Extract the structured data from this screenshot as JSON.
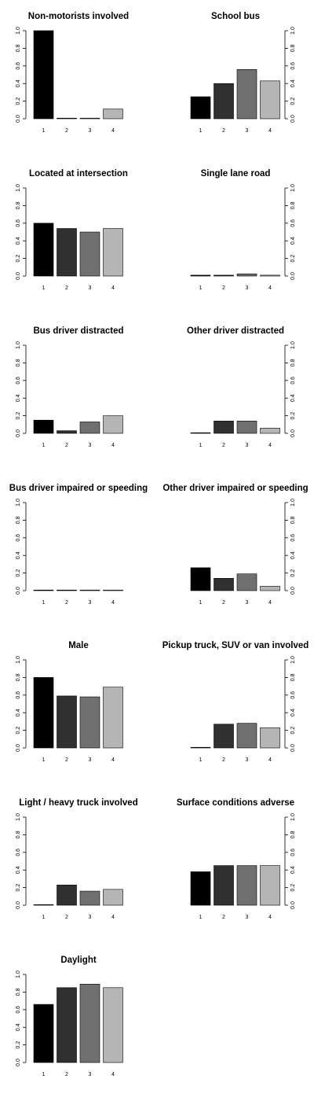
{
  "palette": [
    "#000000",
    "#303030",
    "#707070",
    "#b5b5b5"
  ],
  "chart_data": [
    {
      "type": "bar",
      "title": "Non-motorists involved",
      "categories": [
        "1",
        "2",
        "3",
        "4"
      ],
      "values": [
        1.0,
        0.005,
        0.005,
        0.11
      ],
      "ylim": [
        0,
        1.0
      ],
      "yticks": [
        "0.0",
        "0.2",
        "0.4",
        "0.6",
        "0.8",
        "1.0"
      ],
      "axis_side": "left"
    },
    {
      "type": "bar",
      "title": "School bus",
      "categories": [
        "1",
        "2",
        "3",
        "4"
      ],
      "values": [
        0.25,
        0.4,
        0.56,
        0.43
      ],
      "ylim": [
        0,
        1.0
      ],
      "yticks": [
        "0.0",
        "0.2",
        "0.4",
        "0.6",
        "0.8",
        "1.0"
      ],
      "axis_side": "right"
    },
    {
      "type": "bar",
      "title": "Located at intersection",
      "categories": [
        "1",
        "2",
        "3",
        "4"
      ],
      "values": [
        0.6,
        0.54,
        0.5,
        0.54
      ],
      "ylim": [
        0,
        1.0
      ],
      "yticks": [
        "0.0",
        "0.2",
        "0.4",
        "0.6",
        "0.8",
        "1.0"
      ],
      "axis_side": "left"
    },
    {
      "type": "bar",
      "title": "Single lane road",
      "categories": [
        "1",
        "2",
        "3",
        "4"
      ],
      "values": [
        0.01,
        0.01,
        0.025,
        0.01
      ],
      "ylim": [
        0,
        1.0
      ],
      "yticks": [
        "0.0",
        "0.2",
        "0.4",
        "0.6",
        "0.8",
        "1.0"
      ],
      "axis_side": "right"
    },
    {
      "type": "bar",
      "title": "Bus driver distracted",
      "categories": [
        "1",
        "2",
        "3",
        "4"
      ],
      "values": [
        0.15,
        0.03,
        0.13,
        0.2
      ],
      "ylim": [
        0,
        1.0
      ],
      "yticks": [
        "0.0",
        "0.2",
        "0.4",
        "0.6",
        "0.8",
        "1.0"
      ],
      "axis_side": "left"
    },
    {
      "type": "bar",
      "title": "Other driver distracted",
      "categories": [
        "1",
        "2",
        "3",
        "4"
      ],
      "values": [
        0.005,
        0.14,
        0.14,
        0.06
      ],
      "ylim": [
        0,
        1.0
      ],
      "yticks": [
        "0.0",
        "0.2",
        "0.4",
        "0.6",
        "0.8",
        "1.0"
      ],
      "axis_side": "right"
    },
    {
      "type": "bar",
      "title": "Bus driver impaired or speeding",
      "categories": [
        "1",
        "2",
        "3",
        "4"
      ],
      "values": [
        0.005,
        0.005,
        0.005,
        0.005
      ],
      "ylim": [
        0,
        1.0
      ],
      "yticks": [
        "0.0",
        "0.2",
        "0.4",
        "0.6",
        "0.8",
        "1.0"
      ],
      "axis_side": "left"
    },
    {
      "type": "bar",
      "title": "Other driver impaired or speeding",
      "categories": [
        "1",
        "2",
        "3",
        "4"
      ],
      "values": [
        0.26,
        0.14,
        0.19,
        0.05
      ],
      "ylim": [
        0,
        1.0
      ],
      "yticks": [
        "0.0",
        "0.2",
        "0.4",
        "0.6",
        "0.8",
        "1.0"
      ],
      "axis_side": "right"
    },
    {
      "type": "bar",
      "title": "Male",
      "categories": [
        "1",
        "2",
        "3",
        "4"
      ],
      "values": [
        0.8,
        0.59,
        0.58,
        0.69
      ],
      "ylim": [
        0,
        1.0
      ],
      "yticks": [
        "0.0",
        "0.2",
        "0.4",
        "0.6",
        "0.8",
        "1.0"
      ],
      "axis_side": "left"
    },
    {
      "type": "bar",
      "title": "Pickup truck, SUV or van involved",
      "categories": [
        "1",
        "2",
        "3",
        "4"
      ],
      "values": [
        0.005,
        0.27,
        0.28,
        0.23
      ],
      "ylim": [
        0,
        1.0
      ],
      "yticks": [
        "0.0",
        "0.2",
        "0.4",
        "0.6",
        "0.8",
        "1.0"
      ],
      "axis_side": "right"
    },
    {
      "type": "bar",
      "title": "Light / heavy truck involved",
      "categories": [
        "1",
        "2",
        "3",
        "4"
      ],
      "values": [
        0.005,
        0.23,
        0.16,
        0.18
      ],
      "ylim": [
        0,
        1.0
      ],
      "yticks": [
        "0.0",
        "0.2",
        "0.4",
        "0.6",
        "0.8",
        "1.0"
      ],
      "axis_side": "left"
    },
    {
      "type": "bar",
      "title": "Surface conditions adverse",
      "categories": [
        "1",
        "2",
        "3",
        "4"
      ],
      "values": [
        0.38,
        0.45,
        0.45,
        0.45
      ],
      "ylim": [
        0,
        1.0
      ],
      "yticks": [
        "0.0",
        "0.2",
        "0.4",
        "0.6",
        "0.8",
        "1.0"
      ],
      "axis_side": "right"
    },
    {
      "type": "bar",
      "title": "Daylight",
      "categories": [
        "1",
        "2",
        "3",
        "4"
      ],
      "values": [
        0.66,
        0.85,
        0.89,
        0.85
      ],
      "ylim": [
        0,
        1.0
      ],
      "yticks": [
        "0.0",
        "0.2",
        "0.4",
        "0.6",
        "0.8",
        "1.0"
      ],
      "axis_side": "left"
    }
  ]
}
